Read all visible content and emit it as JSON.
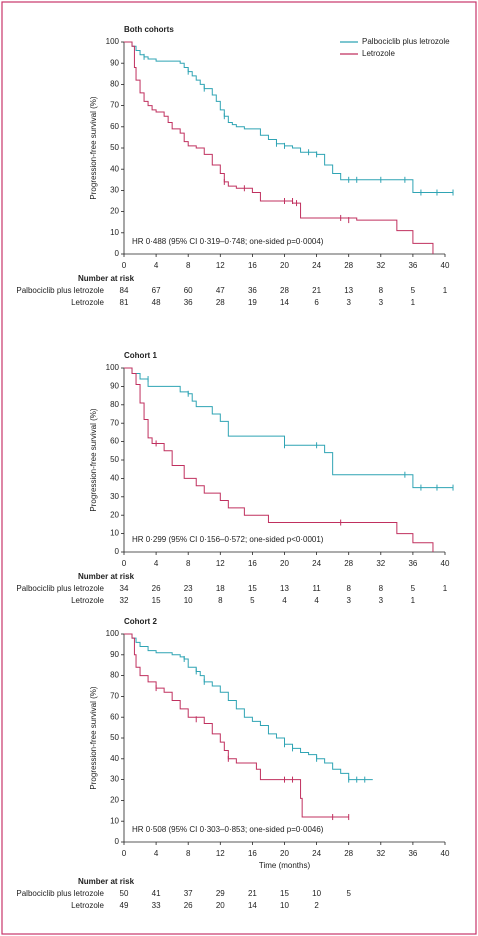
{
  "chart_data": [
    {
      "type": "km",
      "title": "Both cohorts",
      "ylabel": "Progression-free survival (%)",
      "annotation": "HR 0·488 (95% CI 0·319–0·748; one-sided p=0·0004)",
      "xlim": [
        0,
        40
      ],
      "ylim": [
        0,
        100
      ],
      "xticks": [
        0,
        4,
        8,
        12,
        16,
        20,
        24,
        28,
        32,
        36,
        40
      ],
      "yticks": [
        0,
        10,
        20,
        30,
        40,
        50,
        60,
        70,
        80,
        90,
        100
      ],
      "legend": "upper right",
      "at_risk_title": "Number at risk",
      "series": [
        {
          "name": "Palbociclib plus letrozole",
          "color": "#2fa4b4",
          "x": [
            0,
            1,
            1.5,
            2,
            2.5,
            3,
            4,
            7,
            7.5,
            8,
            8.5,
            9,
            9.5,
            10,
            11,
            11.5,
            12,
            12.5,
            13,
            13.5,
            14,
            15,
            17,
            18,
            19,
            20,
            21,
            22,
            24,
            25,
            26,
            27,
            36,
            41
          ],
          "values": [
            100,
            98,
            96,
            94,
            93,
            92,
            91,
            90,
            88,
            86,
            84,
            82,
            80,
            78,
            75,
            72,
            68,
            65,
            62,
            61,
            60,
            59,
            56,
            54,
            52,
            51,
            50,
            48,
            47,
            42,
            38,
            35,
            29,
            29
          ],
          "censor_x": [
            2.5,
            8,
            10,
            12.5,
            19,
            20,
            23,
            24,
            28,
            29,
            32,
            35,
            37,
            39,
            41
          ],
          "censor_values": [
            93,
            86,
            78,
            65,
            52,
            51,
            48,
            47,
            35,
            35,
            35,
            35,
            29,
            29,
            29
          ]
        },
        {
          "name": "Letrozole",
          "color": "#c0305f",
          "x": [
            0,
            1,
            1.3,
            1.5,
            2,
            2.5,
            3,
            3.5,
            4,
            5,
            5.5,
            6,
            7,
            7.5,
            8,
            9,
            10,
            11,
            12,
            12.5,
            13,
            14,
            16,
            17,
            21,
            22,
            29,
            34,
            36,
            38.5
          ],
          "values": [
            100,
            98,
            88,
            82,
            76,
            72,
            70,
            68,
            67,
            65,
            62,
            59,
            57,
            53,
            51,
            50,
            47,
            42,
            38,
            34,
            32,
            31,
            29,
            25,
            24,
            17,
            16,
            11,
            5,
            0
          ],
          "censor_x": [
            12.5,
            15,
            20,
            21,
            21.5,
            27,
            28
          ],
          "censor_values": [
            34,
            31,
            25,
            25,
            24,
            17,
            16
          ]
        }
      ],
      "at_risk": [
        {
          "name": "Palbociclib plus letrozole",
          "values": [
            84,
            67,
            60,
            47,
            36,
            28,
            21,
            13,
            8,
            5,
            1
          ]
        },
        {
          "name": "Letrozole",
          "values": [
            81,
            48,
            36,
            28,
            19,
            14,
            6,
            3,
            3,
            1
          ]
        }
      ]
    },
    {
      "type": "km",
      "title": "Cohort 1",
      "ylabel": "Progression-free survival (%)",
      "annotation": "HR 0·299 (95% CI 0·156–0·572; one-sided p<0·0001)",
      "xlim": [
        0,
        40
      ],
      "ylim": [
        0,
        100
      ],
      "xticks": [
        0,
        4,
        8,
        12,
        16,
        20,
        24,
        28,
        32,
        36,
        40
      ],
      "yticks": [
        0,
        10,
        20,
        30,
        40,
        50,
        60,
        70,
        80,
        90,
        100
      ],
      "at_risk_title": "Number at risk",
      "series": [
        {
          "color": "#2fa4b4",
          "x": [
            0,
            1,
            2,
            3,
            7,
            8,
            8.5,
            9,
            11,
            12,
            13,
            20,
            25,
            26,
            36,
            41
          ],
          "values": [
            100,
            97,
            94,
            90,
            87,
            86,
            82,
            79,
            75,
            71,
            63,
            58,
            54,
            42,
            35,
            35
          ],
          "censor_x": [
            3,
            8,
            20,
            24,
            35,
            37,
            39,
            41
          ],
          "censor_values": [
            94,
            86,
            58,
            58,
            42,
            35,
            35,
            35
          ]
        },
        {
          "color": "#c0305f",
          "x": [
            0,
            1,
            1.5,
            2,
            2.5,
            3,
            3.5,
            5,
            6,
            7.5,
            9,
            10,
            12,
            13,
            15,
            18,
            34,
            36,
            38.5
          ],
          "values": [
            100,
            97,
            91,
            81,
            72,
            62,
            59,
            55,
            47,
            40,
            36,
            32,
            28,
            24,
            20,
            16,
            10,
            5,
            0
          ],
          "censor_x": [
            4,
            27
          ],
          "censor_values": [
            59,
            16
          ]
        }
      ],
      "at_risk": [
        {
          "name": "Palbociclib plus letrozole",
          "values": [
            34,
            26,
            23,
            18,
            15,
            13,
            11,
            8,
            8,
            5,
            1
          ]
        },
        {
          "name": "Letrozole",
          "values": [
            32,
            15,
            10,
            8,
            5,
            4,
            4,
            3,
            3,
            1
          ]
        }
      ]
    },
    {
      "type": "km",
      "title": "Cohort 2",
      "ylabel": "Progression-free survival (%)",
      "xlabel": "Time (months)",
      "annotation": "HR 0·508 (95% CI 0·303–0·853; one-sided p=0·0046)",
      "xlim": [
        0,
        40
      ],
      "ylim": [
        0,
        100
      ],
      "xticks": [
        0,
        4,
        8,
        12,
        16,
        20,
        24,
        28,
        32,
        36,
        40
      ],
      "yticks": [
        0,
        10,
        20,
        30,
        40,
        50,
        60,
        70,
        80,
        90,
        100
      ],
      "at_risk_title": "Number at risk",
      "series": [
        {
          "color": "#2fa4b4",
          "x": [
            0,
            1,
            1.5,
            2,
            3,
            4,
            6,
            7,
            7.5,
            8,
            9,
            9.5,
            10,
            11,
            12,
            13,
            14,
            15,
            16,
            17,
            18,
            19,
            20,
            21,
            22,
            23,
            24,
            25,
            26,
            27,
            28,
            31
          ],
          "values": [
            100,
            98,
            96,
            94,
            92,
            91,
            90,
            89,
            88,
            84,
            82,
            80,
            77,
            75,
            72,
            68,
            64,
            60,
            58,
            56,
            52,
            50,
            47,
            45,
            43,
            42,
            40,
            38,
            35,
            33,
            30,
            30
          ],
          "censor_x": [
            7.5,
            9,
            10,
            20,
            21,
            24,
            28,
            29,
            30
          ],
          "censor_values": [
            88,
            82,
            77,
            47,
            45,
            40,
            30,
            30,
            30
          ]
        },
        {
          "color": "#c0305f",
          "x": [
            0,
            1,
            1.3,
            1.5,
            2,
            3,
            4,
            5,
            6,
            7,
            8,
            10,
            11,
            12,
            12.5,
            13,
            14,
            16.5,
            17,
            22,
            22.2,
            28
          ],
          "values": [
            100,
            98,
            90,
            84,
            80,
            77,
            74,
            72,
            68,
            64,
            60,
            57,
            52,
            48,
            44,
            40,
            38,
            35,
            30,
            21,
            12,
            12
          ],
          "censor_x": [
            4,
            9,
            13,
            20,
            21,
            26,
            28
          ],
          "censor_values": [
            74,
            59,
            40,
            30,
            30,
            12,
            12
          ]
        }
      ],
      "at_risk": [
        {
          "name": "Palbociclib plus letrozole",
          "values": [
            50,
            41,
            37,
            29,
            21,
            15,
            10,
            5
          ]
        },
        {
          "name": "Letrozole",
          "values": [
            49,
            33,
            26,
            20,
            14,
            10,
            2
          ]
        }
      ]
    }
  ]
}
